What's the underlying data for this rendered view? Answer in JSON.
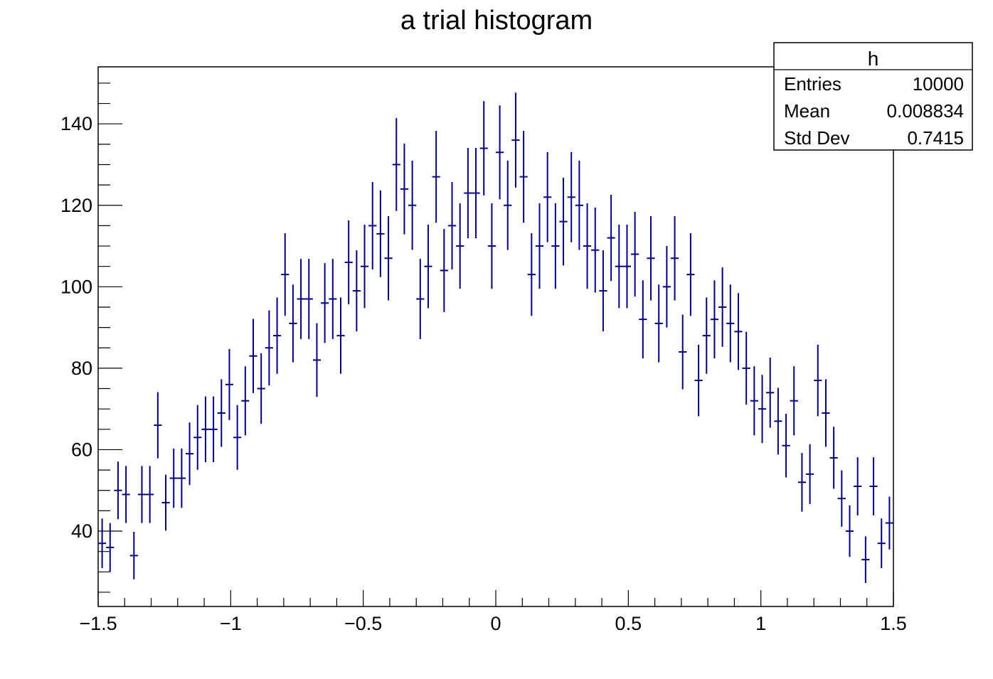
{
  "chart_data": {
    "type": "histogram",
    "title": "a trial histogram",
    "xlabel": "",
    "ylabel": "",
    "xlim": [
      -1.5,
      1.5
    ],
    "ylim": [
      21.5,
      154
    ],
    "x_ticks": [
      "−1.5",
      "−1",
      "−0.5",
      "0",
      "0.5",
      "1",
      "1.5"
    ],
    "y_ticks": [
      "40",
      "60",
      "80",
      "100",
      "120",
      "140"
    ],
    "bin_width": 0.03,
    "error_bars": "sqrt(N)",
    "values": [
      37,
      36,
      50,
      49,
      34,
      49,
      49,
      66,
      47,
      53,
      53,
      59,
      63,
      65,
      65,
      69,
      76,
      63,
      72,
      83,
      75,
      85,
      88,
      103,
      91,
      97,
      97,
      82,
      96,
      97,
      88,
      106,
      99,
      105,
      115,
      113,
      107,
      130,
      124,
      120,
      97,
      105,
      127,
      104,
      115,
      110,
      123,
      123,
      134,
      110,
      133,
      120,
      136,
      127,
      103,
      110,
      122,
      110,
      116,
      122,
      120,
      110,
      109,
      99,
      112,
      105,
      105,
      108,
      92,
      107,
      91,
      100,
      107,
      84,
      103,
      77,
      88,
      92,
      95,
      91,
      89,
      80,
      72,
      70,
      74,
      67,
      61,
      72,
      52,
      54,
      77,
      69,
      58,
      48,
      40,
      51,
      33,
      51,
      37,
      42
    ],
    "color": "#000080",
    "stats_box": {
      "name": "h",
      "rows": [
        {
          "label": "Entries",
          "value": "10000"
        },
        {
          "label": "Mean",
          "value": "0.008834"
        },
        {
          "label": "Std Dev",
          "value": "0.7415"
        }
      ]
    }
  }
}
